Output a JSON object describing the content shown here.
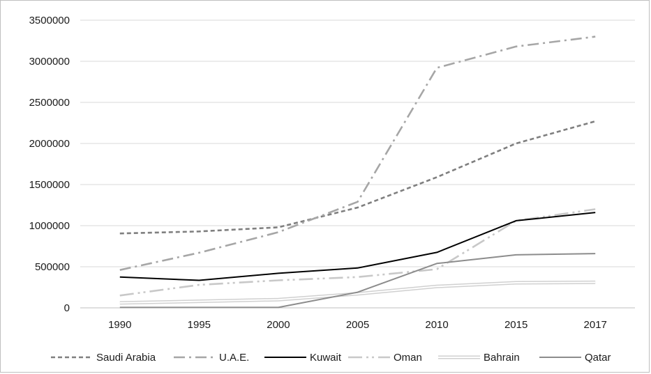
{
  "chart_data": {
    "type": "line",
    "title": "",
    "xlabel": "",
    "ylabel": "",
    "categories": [
      "1990",
      "1995",
      "2000",
      "2005",
      "2010",
      "2015",
      "2017"
    ],
    "ylim": [
      0,
      3500000
    ],
    "yticks": [
      "0",
      "500000",
      "1000000",
      "1500000",
      "2000000",
      "2500000",
      "3000000",
      "3500000"
    ],
    "grid": "horizontal",
    "legend_position": "bottom",
    "series": [
      {
        "name": "Saudi Arabia",
        "values": [
          905000,
          930000,
          980000,
          1220000,
          1590000,
          2000000,
          2270000
        ],
        "color": "#7f7f7f",
        "style": "dash"
      },
      {
        "name": "U.A.E.",
        "values": [
          460000,
          670000,
          920000,
          1290000,
          2920000,
          3180000,
          3300000
        ],
        "color": "#a6a6a6",
        "style": "dashdot"
      },
      {
        "name": "Kuwait",
        "values": [
          375000,
          335000,
          420000,
          485000,
          675000,
          1060000,
          1160000
        ],
        "color": "#000000",
        "style": "solid"
      },
      {
        "name": "Oman",
        "values": [
          150000,
          280000,
          335000,
          375000,
          470000,
          1060000,
          1200000
        ],
        "color": "#c8c8c8",
        "style": "longdashdotdot"
      },
      {
        "name": "Bahrain",
        "values": [
          60000,
          80000,
          100000,
          170000,
          260000,
          305000,
          310000
        ],
        "color": "#d0d0d0",
        "style": "double"
      },
      {
        "name": "Qatar",
        "values": [
          5000,
          5000,
          5000,
          190000,
          540000,
          645000,
          660000
        ],
        "color": "#8c8c8c",
        "style": "solid"
      }
    ]
  }
}
